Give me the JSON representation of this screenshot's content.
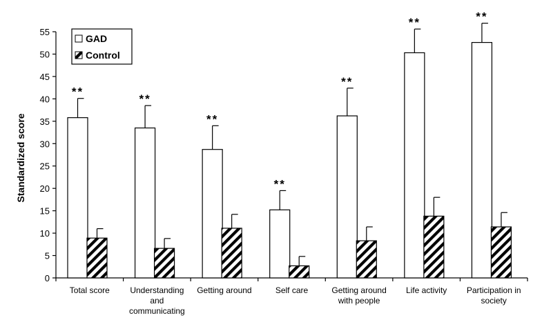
{
  "chart_data": {
    "type": "bar",
    "title": "",
    "xlabel": "",
    "ylabel": "Standardized score",
    "ylim": [
      0,
      55
    ],
    "yticks": [
      0,
      5,
      10,
      15,
      20,
      25,
      30,
      35,
      40,
      45,
      50,
      55
    ],
    "grid": false,
    "legend_position": "top-left",
    "categories": [
      [
        "Total score"
      ],
      [
        "Understanding",
        "and",
        "communicating"
      ],
      [
        "Getting around"
      ],
      [
        "Self care"
      ],
      [
        "Getting around",
        "with people"
      ],
      [
        "Life activity"
      ],
      [
        "Participation in",
        "society"
      ]
    ],
    "series": [
      {
        "name": "GAD",
        "pattern": "white",
        "values": [
          35.8,
          33.5,
          28.7,
          15.2,
          36.2,
          50.3,
          52.6
        ],
        "error": [
          4.3,
          5.0,
          5.3,
          4.3,
          6.2,
          5.3,
          4.3
        ]
      },
      {
        "name": "Control",
        "pattern": "hatched",
        "values": [
          8.9,
          6.6,
          11.1,
          2.7,
          8.3,
          13.8,
          11.4
        ],
        "error": [
          2.1,
          2.2,
          3.1,
          2.1,
          3.1,
          4.2,
          3.2
        ]
      }
    ],
    "annotations": [
      {
        "category_index": 0,
        "text": "**"
      },
      {
        "category_index": 1,
        "text": "**"
      },
      {
        "category_index": 2,
        "text": "**"
      },
      {
        "category_index": 3,
        "text": "**"
      },
      {
        "category_index": 4,
        "text": "**"
      },
      {
        "category_index": 5,
        "text": "**"
      },
      {
        "category_index": 6,
        "text": "**"
      }
    ],
    "colors": {
      "axis": "#000000",
      "bar_fill": "#ffffff",
      "hatch": "#000000"
    }
  }
}
